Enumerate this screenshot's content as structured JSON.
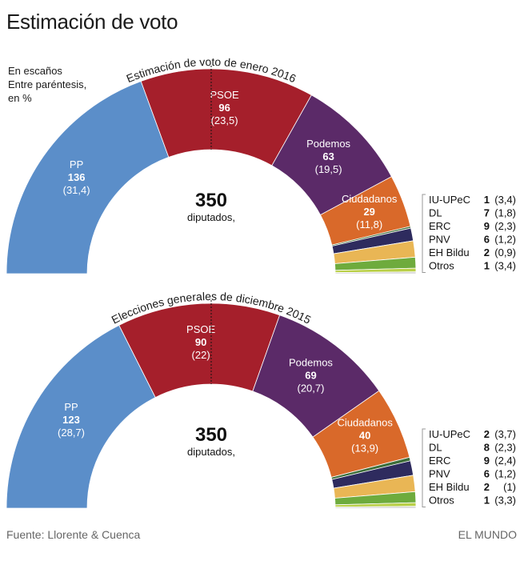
{
  "title": "Estimación de voto",
  "note": [
    "En escaños",
    "Entre paréntesis,",
    "en %"
  ],
  "footer": {
    "source": "Fuente: Llorente & Cuenca",
    "brand": "EL MUNDO"
  },
  "chart_data": [
    {
      "type": "parliament",
      "title": "Estimación de voto de enero 2016",
      "total": "350",
      "total_label": "diputados,",
      "parties": [
        {
          "name": "PP",
          "seats": 136,
          "pct": "31,4",
          "color": "#5b8ec9"
        },
        {
          "name": "PSOE",
          "seats": 96,
          "pct": "23,5",
          "color": "#a51f2b"
        },
        {
          "name": "Podemos",
          "seats": 63,
          "pct": "19,5",
          "color": "#5b2a68"
        },
        {
          "name": "Ciudadanos",
          "seats": 29,
          "pct": "11,8",
          "color": "#d9692a"
        },
        {
          "name": "IU-UPeC",
          "seats": 1,
          "pct": "3,4",
          "color": "#3d6e3a"
        },
        {
          "name": "DL",
          "seats": 7,
          "pct": "1,8",
          "color": "#2e2b5e"
        },
        {
          "name": "ERC",
          "seats": 9,
          "pct": "2,3",
          "color": "#e9b655"
        },
        {
          "name": "PNV",
          "seats": 6,
          "pct": "1,2",
          "color": "#6eab3d"
        },
        {
          "name": "EH Bildu",
          "seats": 2,
          "pct": "0,9",
          "color": "#b9cf47"
        },
        {
          "name": "Otros",
          "seats": 1,
          "pct": "3,4",
          "color": "#cdcdcd"
        }
      ]
    },
    {
      "type": "parliament",
      "title": "Elecciones generales de diciembre 2015",
      "total": "350",
      "total_label": "diputados,",
      "parties": [
        {
          "name": "PP",
          "seats": 123,
          "pct": "28,7",
          "color": "#5b8ec9"
        },
        {
          "name": "PSOE",
          "seats": 90,
          "pct": "22",
          "color": "#a51f2b"
        },
        {
          "name": "Podemos",
          "seats": 69,
          "pct": "20,7",
          "color": "#5b2a68"
        },
        {
          "name": "Ciudadanos",
          "seats": 40,
          "pct": "13,9",
          "color": "#d9692a"
        },
        {
          "name": "IU-UPeC",
          "seats": 2,
          "pct": "3,7",
          "color": "#3d6e3a"
        },
        {
          "name": "DL",
          "seats": 8,
          "pct": "2,3",
          "color": "#2e2b5e"
        },
        {
          "name": "ERC",
          "seats": 9,
          "pct": "2,4",
          "color": "#e9b655"
        },
        {
          "name": "PNV",
          "seats": 6,
          "pct": "1,2",
          "color": "#6eab3d"
        },
        {
          "name": "EH Bildu",
          "seats": 2,
          "pct": "1",
          "color": "#b9cf47"
        },
        {
          "name": "Otros",
          "seats": 1,
          "pct": "3,3",
          "color": "#cdcdcd"
        }
      ]
    }
  ]
}
